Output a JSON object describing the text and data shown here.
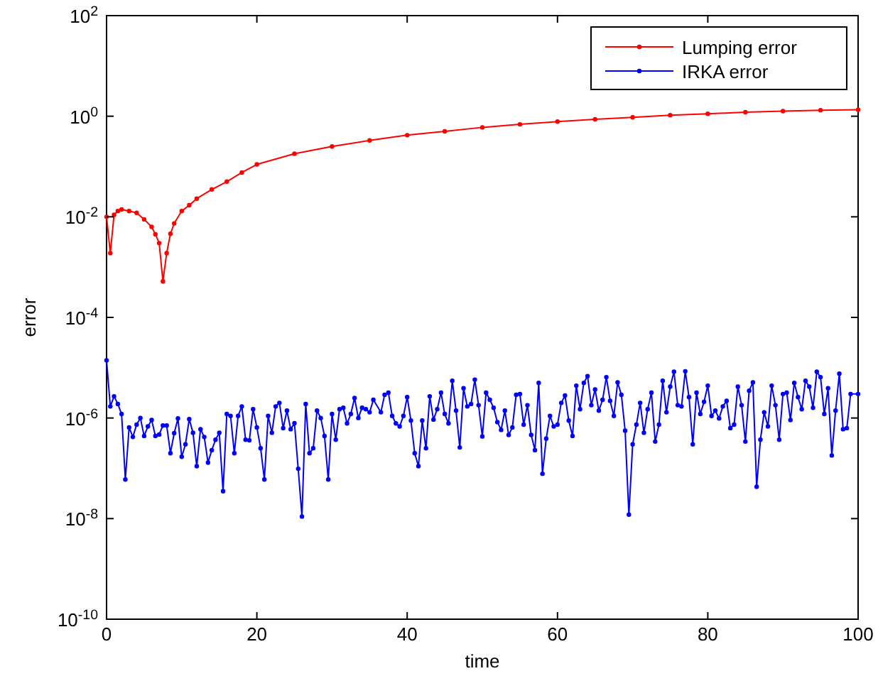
{
  "chart_data": {
    "type": "line",
    "xlabel": "time",
    "ylabel": "error",
    "log": "y",
    "xlim": [
      0,
      100
    ],
    "xticks": [
      0,
      20,
      40,
      60,
      80,
      100
    ],
    "ylim": [
      1e-10,
      100
    ],
    "yticks": [
      {
        "value": 1e-10,
        "label": "10$^{-10}$"
      },
      {
        "value": 1e-08,
        "label": "10$^{-8}$"
      },
      {
        "value": 1e-06,
        "label": "10$^{-6}$"
      },
      {
        "value": 0.0001,
        "label": "10$^{-4}$"
      },
      {
        "value": 0.01,
        "label": "10$^{-2}$"
      },
      {
        "value": 1,
        "label": "10$^{0}$"
      },
      {
        "value": 100,
        "label": "10$^{2}$"
      }
    ],
    "grid": false,
    "legend": "top right",
    "marker": "circle",
    "line_style": "solid",
    "series": [
      {
        "name": "Lumping error",
        "color": "#ff0000",
        "x": [
          0,
          0.5,
          1,
          1.5,
          2,
          3,
          4,
          5,
          6,
          6.5,
          7,
          7.5,
          8,
          8.5,
          9,
          10,
          11,
          12,
          14,
          16,
          18,
          20,
          25,
          30,
          35,
          40,
          45,
          50,
          55,
          60,
          65,
          70,
          75,
          80,
          85,
          90,
          95,
          100
        ],
        "values": [
          0.01,
          0.0019,
          0.011,
          0.013,
          0.014,
          0.013,
          0.012,
          0.0089,
          0.0063,
          0.0045,
          0.003,
          0.00052,
          0.0019,
          0.0046,
          0.0074,
          0.013,
          0.017,
          0.023,
          0.035,
          0.05,
          0.076,
          0.11,
          0.18,
          0.25,
          0.33,
          0.42,
          0.5,
          0.6,
          0.69,
          0.78,
          0.87,
          0.95,
          1.05,
          1.12,
          1.2,
          1.26,
          1.32,
          1.35
        ]
      },
      {
        "name": "IRKA error",
        "color": "#0000ff",
        "x": [
          0,
          0.5,
          1,
          1.5,
          2,
          2.5,
          3,
          3.5,
          4,
          4.5,
          5,
          5.5,
          6,
          6.5,
          7,
          7.5,
          8,
          8.5,
          9,
          9.5,
          10,
          10.5,
          11,
          11.5,
          12,
          12.5,
          13,
          13.5,
          14,
          14.5,
          15,
          15.5,
          16,
          16.5,
          17,
          17.5,
          18,
          18.5,
          19,
          19.5,
          20,
          20.5,
          21,
          21.5,
          22,
          22.5,
          23,
          23.5,
          24,
          24.5,
          25,
          25.5,
          26,
          26.5,
          27,
          27.5,
          28,
          28.5,
          29,
          29.5,
          30,
          30.5,
          31,
          31.5,
          32,
          32.5,
          33,
          33.5,
          34,
          34.5,
          35,
          35.5,
          36.5,
          37,
          37.5,
          38,
          38.5,
          39,
          39.5,
          40,
          40.5,
          41,
          41.5,
          42,
          42.5,
          43,
          43.5,
          44,
          44.5,
          45,
          45.5,
          46,
          46.5,
          47,
          47.5,
          48,
          48.5,
          49,
          49.5,
          50,
          50.5,
          51,
          51.5,
          52,
          52.5,
          53,
          53.5,
          54,
          54.5,
          55,
          55.5,
          56,
          56.5,
          57,
          57.5,
          58,
          58.5,
          59,
          59.5,
          60,
          60.5,
          61,
          61.5,
          62,
          62.5,
          63,
          63.5,
          64,
          64.5,
          65,
          65.5,
          66,
          66.5,
          67,
          67.5,
          68,
          68.5,
          69,
          69.5,
          70,
          70.5,
          71,
          71.5,
          72,
          72.5,
          73,
          73.5,
          74,
          74.5,
          75,
          75.5,
          76,
          76.5,
          77,
          77.5,
          78,
          78.5,
          79,
          79.5,
          80,
          80.5,
          81,
          81.5,
          82,
          82.5,
          83,
          83.5,
          84,
          84.5,
          85,
          85.5,
          86,
          86.5,
          87,
          87.5,
          88,
          88.5,
          89,
          89.5,
          90,
          90.5,
          91,
          91.5,
          92,
          92.5,
          93,
          93.5,
          94,
          94.5,
          95,
          95.5,
          96,
          96.5,
          97,
          97.5,
          98,
          98.5,
          99,
          100
        ],
        "values": [
          1.4e-05,
          1.7e-06,
          2.7e-06,
          1.9e-06,
          1.2e-06,
          6e-08,
          6.5e-07,
          4.2e-07,
          7.4e-07,
          1e-06,
          4.4e-07,
          6.8e-07,
          9.1e-07,
          4.4e-07,
          4.7e-07,
          7.1e-07,
          7.1e-07,
          2e-07,
          5e-07,
          9.8e-07,
          1.7e-07,
          3e-07,
          9.5e-07,
          5.1e-07,
          1.1e-07,
          6e-07,
          4.2e-07,
          1.3e-07,
          2.3e-07,
          3.7e-07,
          5.1e-07,
          3.5e-08,
          1.2e-06,
          1.1e-06,
          2e-07,
          1.1e-06,
          1.7e-06,
          3.7e-07,
          3.6e-07,
          1.5e-06,
          6.5e-07,
          2.5e-07,
          6e-08,
          1.1e-06,
          5.1e-07,
          1.7e-06,
          2e-06,
          6.3e-07,
          1.4e-06,
          6e-07,
          7.9e-07,
          9.8e-08,
          1.1e-08,
          1.9e-06,
          2e-07,
          2.5e-07,
          1.4e-06,
          1e-06,
          4.4e-07,
          6e-08,
          1.2e-06,
          3.7e-07,
          1.5e-06,
          1.6e-06,
          7.8e-07,
          1.2e-06,
          2.5e-06,
          1e-06,
          1.6e-06,
          1.5e-06,
          1.3e-06,
          2.3e-06,
          1.3e-06,
          2.9e-06,
          3.2e-06,
          1.1e-06,
          7.8e-07,
          6.8e-07,
          1.1e-06,
          2.6e-06,
          8.9e-07,
          2e-07,
          1.1e-07,
          8.9e-07,
          2.5e-07,
          2.7e-06,
          9.3e-07,
          1.5e-06,
          3.2e-06,
          1.2e-06,
          7.8e-07,
          5.5e-06,
          1.4e-06,
          2.6e-07,
          3.9e-06,
          1.7e-06,
          1.9e-06,
          5.8e-06,
          1.8e-06,
          4.3e-07,
          3.2e-06,
          2.3e-06,
          1.6e-06,
          8.3e-07,
          5.8e-07,
          1.4e-06,
          4.6e-07,
          6.5e-07,
          2.9e-06,
          3e-06,
          7.4e-07,
          1.8e-06,
          4.6e-07,
          2.3e-07,
          5e-06,
          7.8e-08,
          3.9e-07,
          1.1e-06,
          6.8e-07,
          7.4e-07,
          2e-06,
          2.8e-06,
          8.9e-07,
          4.4e-07,
          4.4e-06,
          1.5e-06,
          5e-06,
          6.8e-06,
          1.8e-06,
          3.7e-06,
          1.4e-06,
          2.3e-06,
          6.5e-06,
          2.2e-06,
          1.1e-06,
          5.1e-06,
          2.9e-06,
          5.6e-07,
          1.2e-08,
          3e-07,
          7.4e-07,
          2e-06,
          5.1e-07,
          1.5e-06,
          3.2e-06,
          3.4e-07,
          7.4e-07,
          5.5e-06,
          1.3e-06,
          4.2e-06,
          8.3e-06,
          1.8e-06,
          1.7e-06,
          8.5e-06,
          2.6e-06,
          3e-07,
          3.2e-06,
          1.2e-06,
          2.1e-06,
          4.4e-06,
          1.1e-06,
          1.4e-06,
          9.8e-07,
          1.7e-06,
          2.2e-06,
          6.3e-07,
          7.4e-07,
          4.2e-06,
          1.8e-06,
          3.4e-07,
          3.5e-06,
          5.1e-06,
          4.3e-08,
          3.7e-07,
          1.3e-06,
          6.8e-07,
          4.4e-06,
          1.8e-06,
          3.7e-07,
          3e-06,
          3.2e-06,
          9.1e-07,
          5e-06,
          2.6e-06,
          1.5e-06,
          5.5e-06,
          4.2e-06,
          1.6e-06,
          8.3e-06,
          6.5e-06,
          1.2e-06,
          3.9e-06,
          1.8e-07,
          1.4e-06,
          7.6e-06,
          6e-07,
          6.3e-07,
          3e-06,
          3e-06
        ]
      }
    ]
  }
}
